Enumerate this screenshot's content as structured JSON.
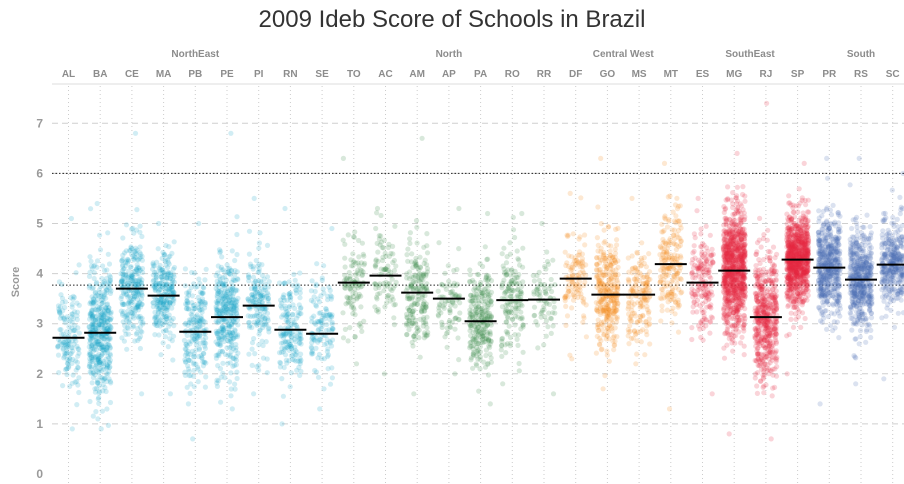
{
  "chart_data": {
    "type": "scatter",
    "title": "2009 Ideb Score of Schools in Brazil",
    "ylabel": "Score",
    "ylim": [
      0,
      7.6
    ],
    "yticks": [
      0,
      1,
      2,
      3,
      4,
      5,
      6,
      7
    ],
    "reference_lines": [
      6,
      3.77
    ],
    "regions": [
      {
        "name": "NorthEast",
        "color": "#1ba3c6",
        "states": [
          "AL",
          "BA",
          "CE",
          "MA",
          "PB",
          "PE",
          "PI",
          "RN",
          "SE"
        ]
      },
      {
        "name": "North",
        "color": "#3b8a4a",
        "states": [
          "TO",
          "AC",
          "AM",
          "AP",
          "PA",
          "RO",
          "RR"
        ]
      },
      {
        "name": "Central West",
        "color": "#f58a1f",
        "states": [
          "DF",
          "GO",
          "MS",
          "MT"
        ]
      },
      {
        "name": "SouthEast",
        "color": "#e8273f",
        "states": [
          "ES",
          "MG",
          "RJ",
          "SP"
        ]
      },
      {
        "name": "South",
        "color": "#4a70b5",
        "states": [
          "PR",
          "RS",
          "SC"
        ]
      }
    ],
    "series": [
      {
        "name": "AL",
        "region": "NorthEast",
        "median": 2.72,
        "min": 0.9,
        "max": 5.1,
        "spread": 0.55,
        "count": 140
      },
      {
        "name": "BA",
        "region": "NorthEast",
        "median": 2.82,
        "min": 0.9,
        "max": 5.4,
        "spread": 0.65,
        "count": 420
      },
      {
        "name": "CE",
        "region": "NorthEast",
        "median": 3.7,
        "min": 1.6,
        "max": 6.8,
        "spread": 0.5,
        "count": 260
      },
      {
        "name": "MA",
        "region": "NorthEast",
        "median": 3.56,
        "min": 1.6,
        "max": 5.0,
        "spread": 0.45,
        "count": 250
      },
      {
        "name": "PB",
        "region": "NorthEast",
        "median": 2.84,
        "min": 0.7,
        "max": 5.0,
        "spread": 0.55,
        "count": 200
      },
      {
        "name": "PE",
        "region": "NorthEast",
        "median": 3.13,
        "min": 1.3,
        "max": 6.8,
        "spread": 0.6,
        "count": 330
      },
      {
        "name": "PI",
        "region": "NorthEast",
        "median": 3.36,
        "min": 1.6,
        "max": 5.5,
        "spread": 0.5,
        "count": 170
      },
      {
        "name": "RN",
        "region": "NorthEast",
        "median": 2.88,
        "min": 1.0,
        "max": 5.3,
        "spread": 0.5,
        "count": 170
      },
      {
        "name": "SE",
        "region": "NorthEast",
        "median": 2.8,
        "min": 1.3,
        "max": 4.9,
        "spread": 0.5,
        "count": 120
      },
      {
        "name": "TO",
        "region": "North",
        "median": 3.82,
        "min": 2.2,
        "max": 6.3,
        "spread": 0.45,
        "count": 110
      },
      {
        "name": "AC",
        "region": "North",
        "median": 3.96,
        "min": 2.0,
        "max": 5.3,
        "spread": 0.5,
        "count": 90
      },
      {
        "name": "AM",
        "region": "North",
        "median": 3.62,
        "min": 1.6,
        "max": 6.7,
        "spread": 0.55,
        "count": 190
      },
      {
        "name": "AP",
        "region": "North",
        "median": 3.5,
        "min": 2.0,
        "max": 5.3,
        "spread": 0.45,
        "count": 80
      },
      {
        "name": "PA",
        "region": "North",
        "median": 3.05,
        "min": 1.4,
        "max": 5.2,
        "spread": 0.5,
        "count": 260
      },
      {
        "name": "RO",
        "region": "North",
        "median": 3.47,
        "min": 1.8,
        "max": 5.2,
        "spread": 0.5,
        "count": 150
      },
      {
        "name": "RR",
        "region": "North",
        "median": 3.48,
        "min": 1.6,
        "max": 5.0,
        "spread": 0.45,
        "count": 70
      },
      {
        "name": "DF",
        "region": "Central West",
        "median": 3.9,
        "min": 2.3,
        "max": 5.6,
        "spread": 0.45,
        "count": 110
      },
      {
        "name": "GO",
        "region": "Central West",
        "median": 3.58,
        "min": 1.7,
        "max": 6.3,
        "spread": 0.55,
        "count": 320
      },
      {
        "name": "MS",
        "region": "Central West",
        "median": 3.58,
        "min": 2.2,
        "max": 5.5,
        "spread": 0.5,
        "count": 160
      },
      {
        "name": "MT",
        "region": "Central West",
        "median": 4.19,
        "min": 1.3,
        "max": 6.2,
        "spread": 0.5,
        "count": 190
      },
      {
        "name": "ES",
        "region": "SouthEast",
        "median": 3.82,
        "min": 1.6,
        "max": 5.5,
        "spread": 0.5,
        "count": 170
      },
      {
        "name": "MG",
        "region": "SouthEast",
        "median": 4.06,
        "min": 0.8,
        "max": 6.4,
        "spread": 0.6,
        "count": 900
      },
      {
        "name": "RJ",
        "region": "SouthEast",
        "median": 3.13,
        "min": 0.7,
        "max": 7.4,
        "spread": 0.65,
        "count": 500
      },
      {
        "name": "SP",
        "region": "SouthEast",
        "median": 4.28,
        "min": 2.0,
        "max": 6.2,
        "spread": 0.45,
        "count": 900
      },
      {
        "name": "PR",
        "region": "South",
        "median": 4.12,
        "min": 1.4,
        "max": 6.3,
        "spread": 0.5,
        "count": 500
      },
      {
        "name": "RS",
        "region": "South",
        "median": 3.88,
        "min": 1.8,
        "max": 6.3,
        "spread": 0.5,
        "count": 500
      },
      {
        "name": "SC",
        "region": "South",
        "median": 4.18,
        "min": 1.9,
        "max": 6.0,
        "spread": 0.45,
        "count": 350
      }
    ]
  }
}
